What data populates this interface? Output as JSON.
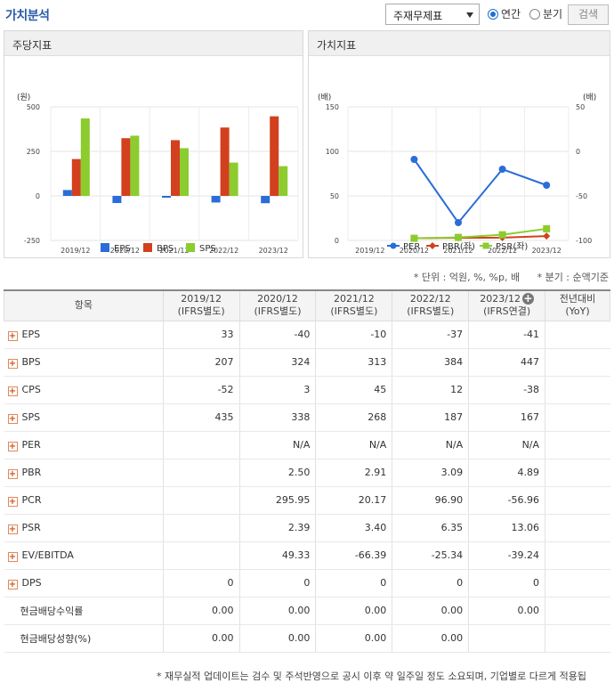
{
  "header": {
    "title": "가치분석",
    "select_value": "주재무제표",
    "radio_annual": "연간",
    "radio_quarter": "분기",
    "search_label": "검색"
  },
  "panels": {
    "per_share_title": "주당지표",
    "value_title": "가치지표"
  },
  "notes": {
    "unit": "* 단위 : 억원, %, %p, 배",
    "quarter": "* 분기 : 순액기준"
  },
  "chart_data": [
    {
      "type": "bar",
      "title": "주당지표",
      "unit_label": "(원)",
      "categories": [
        "2019/12",
        "2020/12",
        "2021/12",
        "2022/12",
        "2023/12"
      ],
      "ylim": [
        -250,
        500
      ],
      "yticks": [
        "500",
        "250",
        "0",
        "-250"
      ],
      "series": [
        {
          "name": "EPS",
          "color": "#2a6dd8",
          "values": [
            33,
            -40,
            -10,
            -37,
            -41
          ]
        },
        {
          "name": "BPS",
          "color": "#d2401e",
          "values": [
            207,
            324,
            313,
            384,
            447
          ]
        },
        {
          "name": "SPS",
          "color": "#8ccc2e",
          "values": [
            435,
            338,
            268,
            187,
            167
          ]
        }
      ],
      "grid": true,
      "legend": "bottom"
    },
    {
      "type": "line",
      "title": "가치지표",
      "left_unit_label": "(배)",
      "right_unit_label": "(배)",
      "categories": [
        "2019/12",
        "2020/12",
        "2021/12",
        "2022/12",
        "2023/12"
      ],
      "ylim_left": [
        0,
        150
      ],
      "yticks_left": [
        "150",
        "100",
        "50",
        "0"
      ],
      "ylim_right": [
        -100,
        50
      ],
      "yticks_right": [
        "50",
        "0",
        "-50",
        "-100"
      ],
      "series": [
        {
          "name": "PER",
          "axis": "right",
          "color": "#2a6dd8",
          "marker": "circle",
          "values": [
            null,
            -9,
            -80,
            -20,
            -38
          ]
        },
        {
          "name": "PBR(좌)",
          "axis": "left",
          "color": "#d2401e",
          "marker": "diamond",
          "values": [
            null,
            2.5,
            2.91,
            3.09,
            4.89
          ]
        },
        {
          "name": "PSR(좌)",
          "axis": "left",
          "color": "#8ccc2e",
          "marker": "square",
          "values": [
            null,
            2.39,
            3.4,
            6.35,
            13.06
          ]
        }
      ],
      "grid": true,
      "legend": "bottom"
    }
  ],
  "table": {
    "header_item": "항목",
    "columns": [
      {
        "line1": "2019/12",
        "line2": "(IFRS별도)"
      },
      {
        "line1": "2020/12",
        "line2": "(IFRS별도)"
      },
      {
        "line1": "2021/12",
        "line2": "(IFRS별도)"
      },
      {
        "line1": "2022/12",
        "line2": "(IFRS별도)"
      },
      {
        "line1": "2023/12",
        "line2": "(IFRS연결)"
      },
      {
        "line1": "전년대비",
        "line2": "(YoY)"
      }
    ],
    "rows": [
      {
        "name": "EPS",
        "expandable": true,
        "values": [
          "33",
          "-40",
          "-10",
          "-37",
          "-41",
          ""
        ]
      },
      {
        "name": "BPS",
        "expandable": true,
        "values": [
          "207",
          "324",
          "313",
          "384",
          "447",
          ""
        ]
      },
      {
        "name": "CPS",
        "expandable": true,
        "values": [
          "-52",
          "3",
          "45",
          "12",
          "-38",
          ""
        ]
      },
      {
        "name": "SPS",
        "expandable": true,
        "values": [
          "435",
          "338",
          "268",
          "187",
          "167",
          ""
        ]
      },
      {
        "name": "PER",
        "expandable": true,
        "values": [
          "",
          "N/A",
          "N/A",
          "N/A",
          "N/A",
          ""
        ]
      },
      {
        "name": "PBR",
        "expandable": true,
        "values": [
          "",
          "2.50",
          "2.91",
          "3.09",
          "4.89",
          ""
        ]
      },
      {
        "name": "PCR",
        "expandable": true,
        "values": [
          "",
          "295.95",
          "20.17",
          "96.90",
          "-56.96",
          ""
        ]
      },
      {
        "name": "PSR",
        "expandable": true,
        "values": [
          "",
          "2.39",
          "3.40",
          "6.35",
          "13.06",
          ""
        ]
      },
      {
        "name": "EV/EBITDA",
        "expandable": true,
        "values": [
          "",
          "49.33",
          "-66.39",
          "-25.34",
          "-39.24",
          ""
        ]
      },
      {
        "name": "DPS",
        "expandable": true,
        "values": [
          "0",
          "0",
          "0",
          "0",
          "0",
          ""
        ]
      },
      {
        "name": "현금배당수익률",
        "expandable": false,
        "values": [
          "0.00",
          "0.00",
          "0.00",
          "0.00",
          "0.00",
          ""
        ]
      },
      {
        "name": "현금배당성향(%)",
        "expandable": false,
        "values": [
          "0.00",
          "0.00",
          "0.00",
          "0.00",
          "",
          ""
        ]
      }
    ]
  },
  "footnote": "* 재무실적 업데이트는 검수 및 주석반영으로 공시 이후 약 일주일 정도 소요되며, 기업별로 다르게 적용됩",
  "colors": {
    "title": "#2a5ba8",
    "negative": "#c8201e"
  }
}
